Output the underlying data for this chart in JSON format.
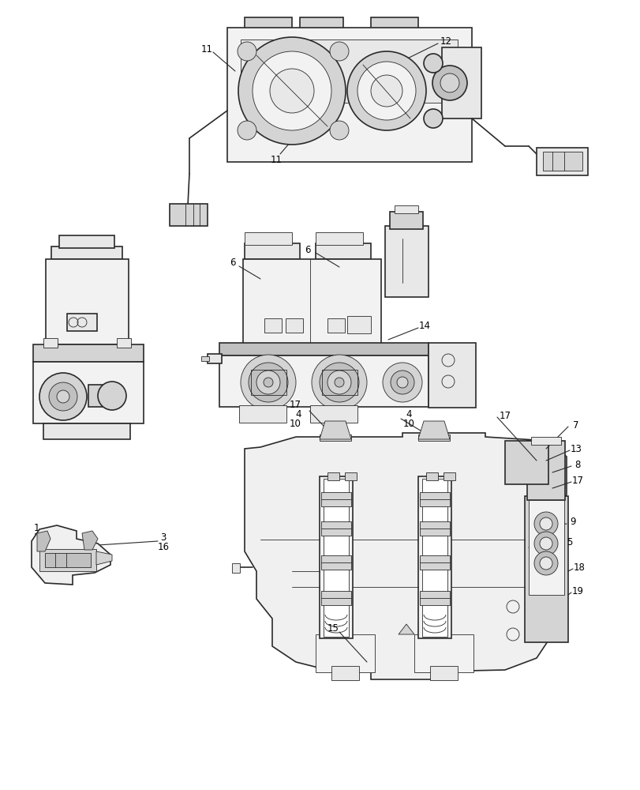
{
  "background_color": "#ffffff",
  "line_color": "#2a2a2a",
  "callout_color": "#000000",
  "fig_width": 8.12,
  "fig_height": 10.0,
  "dpi": 100,
  "gray1": "#e8e8e8",
  "gray2": "#d4d4d4",
  "gray3": "#c0c0c0",
  "gray4": "#f2f2f2",
  "lw_main": 1.2,
  "lw_thin": 0.6,
  "lw_thick": 1.8,
  "font_size": 8.5
}
